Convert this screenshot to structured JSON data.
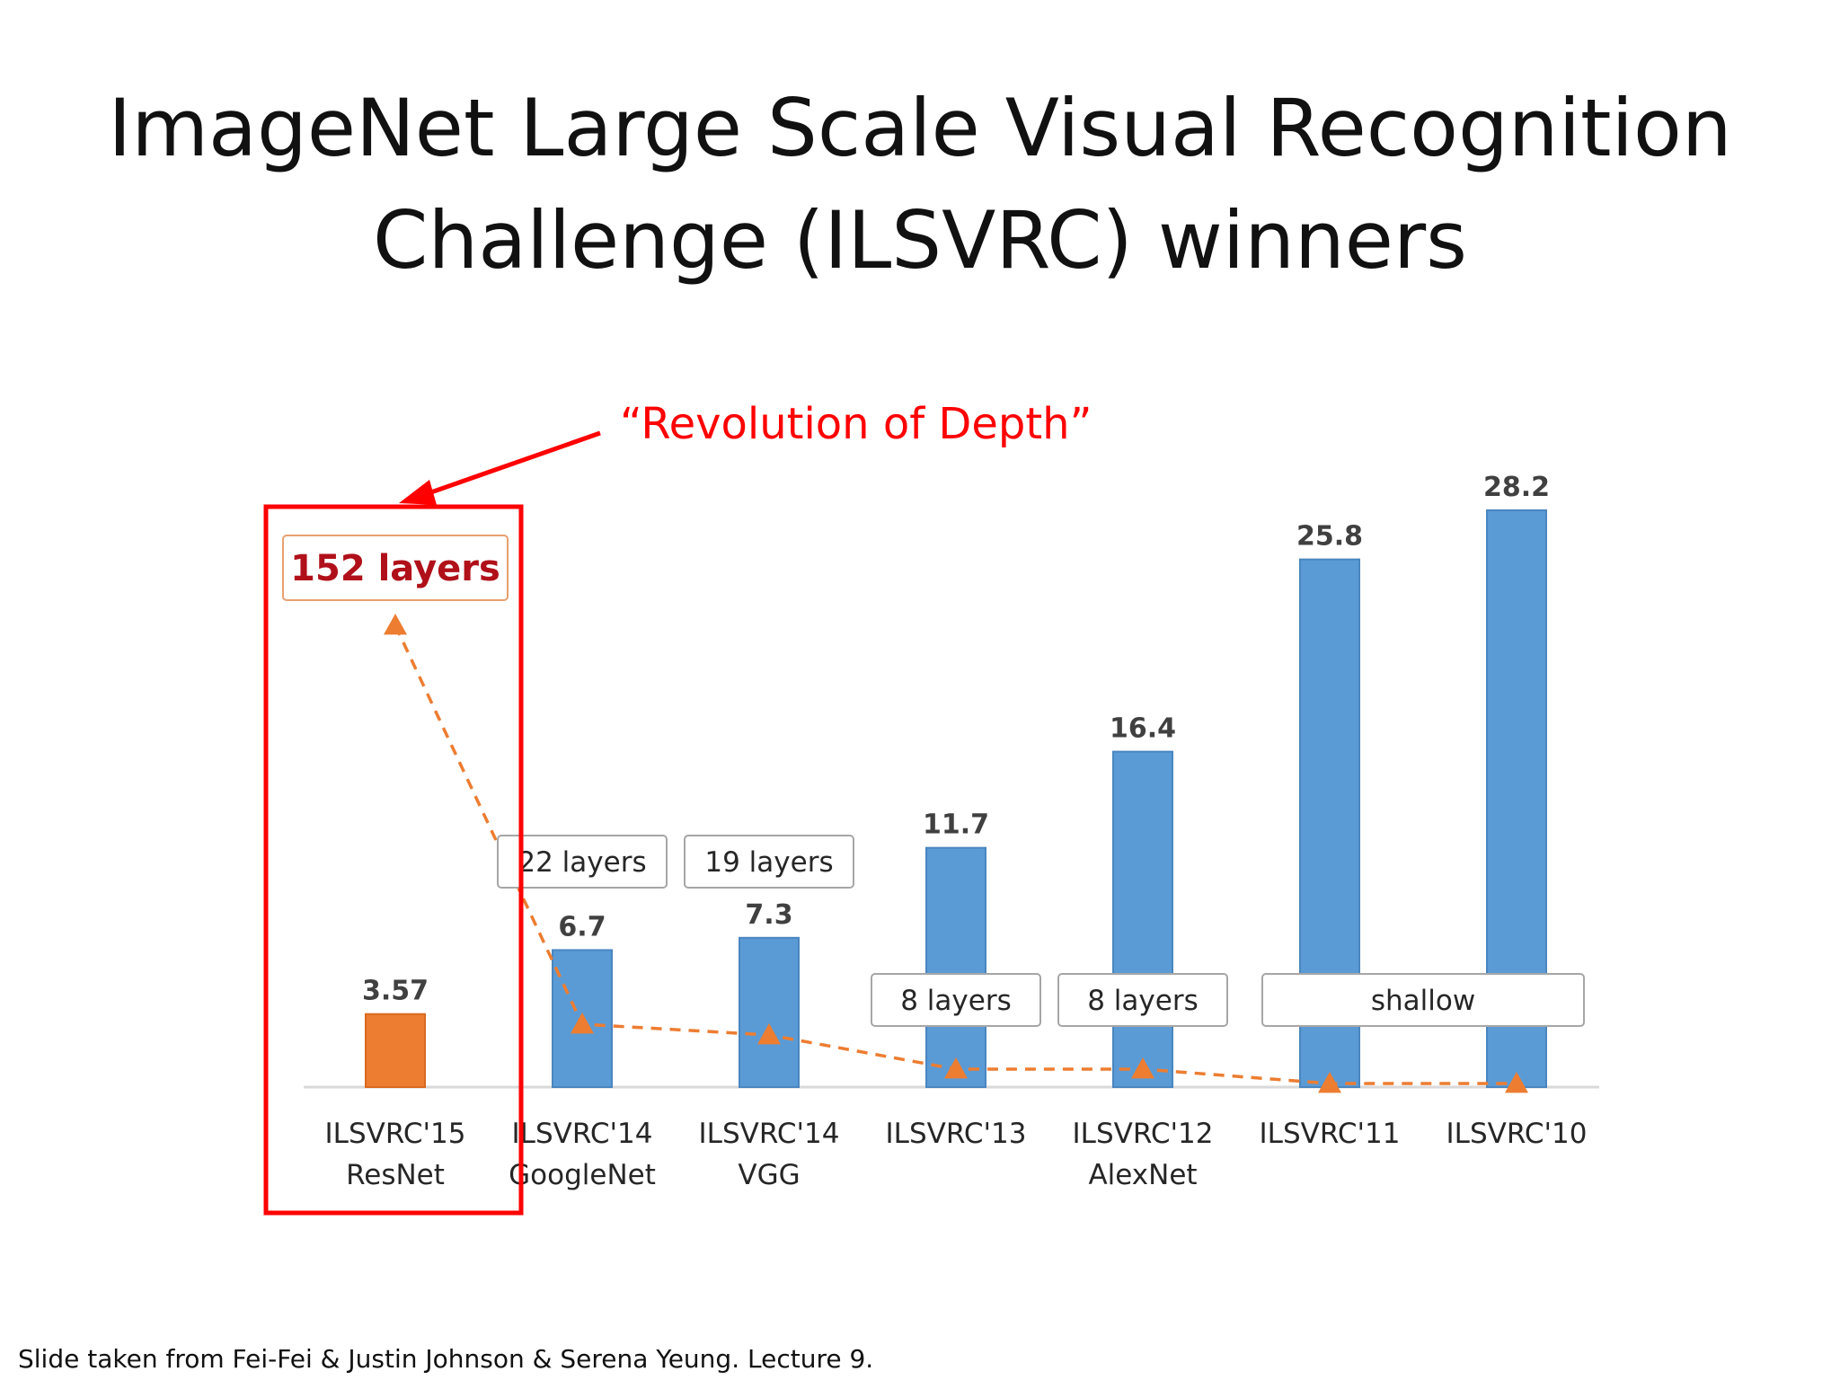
{
  "slide": {
    "title_line1": "ImageNet Large Scale Visual Recognition",
    "title_line2": "Challenge (ILSVRC) winners",
    "footer": "Slide taken from Fei-Fei & Justin Johnson & Serena Yeung. Lecture 9."
  },
  "chart_data": {
    "type": "bar",
    "categories": [
      [
        "ILSVRC'15",
        "ResNet"
      ],
      [
        "ILSVRC'14",
        "GoogleNet"
      ],
      [
        "ILSVRC'14",
        "VGG"
      ],
      [
        "ILSVRC'13",
        ""
      ],
      [
        "ILSVRC'12",
        "AlexNet"
      ],
      [
        "ILSVRC'11",
        ""
      ],
      [
        "ILSVRC'10",
        ""
      ]
    ],
    "values": [
      3.57,
      6.7,
      7.3,
      11.7,
      16.4,
      25.8,
      28.2
    ],
    "value_labels": [
      "3.57",
      "6.7",
      "7.3",
      "11.7",
      "16.4",
      "25.8",
      "28.2"
    ],
    "bar_colors": [
      "#ED7D31",
      "#5B9BD5",
      "#5B9BD5",
      "#5B9BD5",
      "#5B9BD5",
      "#5B9BD5",
      "#5B9BD5"
    ],
    "ylim": [
      0,
      30
    ],
    "depth_series": {
      "color": "#ED7D31",
      "style": "dashed",
      "marker": "triangle",
      "values": [
        152,
        22,
        19,
        8,
        8,
        0,
        0
      ]
    },
    "layer_labels": [
      {
        "text": "152 layers",
        "categories": [
          0
        ],
        "emphasis": true
      },
      {
        "text": "22 layers",
        "categories": [
          1
        ]
      },
      {
        "text": "19 layers",
        "categories": [
          2
        ]
      },
      {
        "text": "8 layers",
        "categories": [
          3
        ]
      },
      {
        "text": "8 layers",
        "categories": [
          4
        ]
      },
      {
        "text": "shallow",
        "categories": [
          5,
          6
        ]
      }
    ],
    "annotation": {
      "text": "“Revolution of Depth”",
      "color": "#FF0000",
      "highlight": "box around ResNet"
    }
  }
}
